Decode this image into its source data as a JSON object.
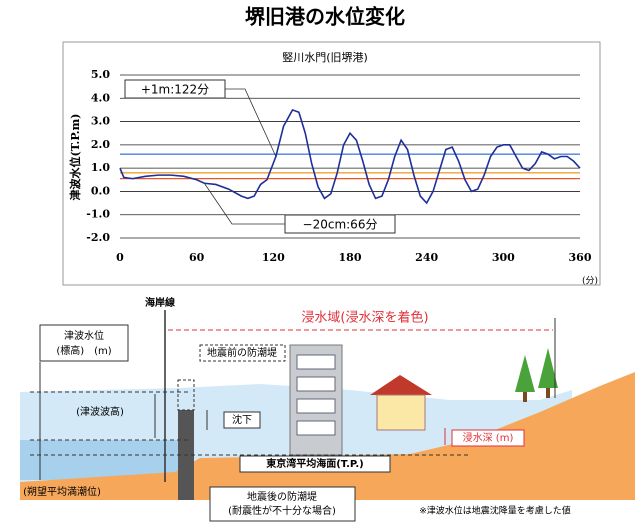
{
  "chart_data": {
    "type": "line",
    "title": "堺旧港の水位変化",
    "subtitle": "竪川水門(旧堺港)",
    "y_label": "津波水位(T.P.m)",
    "x_label": "(分)",
    "x": [
      0,
      3,
      10,
      20,
      30,
      40,
      50,
      60,
      66,
      75,
      85,
      95,
      100,
      105,
      110,
      115,
      122,
      128,
      135,
      140,
      145,
      150,
      155,
      160,
      165,
      170,
      175,
      180,
      185,
      190,
      195,
      200,
      205,
      210,
      215,
      220,
      225,
      230,
      235,
      240,
      245,
      250,
      255,
      260,
      265,
      270,
      275,
      280,
      285,
      290,
      295,
      300,
      305,
      310,
      315,
      320,
      325,
      330,
      335,
      340,
      345,
      350,
      355,
      360
    ],
    "values": [
      1.0,
      0.6,
      0.55,
      0.65,
      0.7,
      0.7,
      0.65,
      0.5,
      0.35,
      0.3,
      0.1,
      -0.2,
      -0.3,
      -0.2,
      0.3,
      0.5,
      1.5,
      2.8,
      3.5,
      3.4,
      2.5,
      1.2,
      0.2,
      -0.3,
      -0.1,
      0.8,
      2.0,
      2.5,
      2.2,
      1.3,
      0.3,
      -0.3,
      -0.2,
      0.5,
      1.5,
      2.2,
      1.8,
      0.7,
      -0.2,
      -0.5,
      0.0,
      0.9,
      1.8,
      1.9,
      1.3,
      0.5,
      0.0,
      0.1,
      0.7,
      1.5,
      1.9,
      2.0,
      2.0,
      1.5,
      1.0,
      0.9,
      1.2,
      1.7,
      1.6,
      1.4,
      1.5,
      1.5,
      1.3,
      1.0
    ],
    "color": "#1f2f9a",
    "xlim": [
      0,
      360
    ],
    "xticks": [
      0,
      60,
      120,
      180,
      240,
      300,
      360
    ],
    "ylim": [
      -2,
      5
    ],
    "yticks": [
      {
        "value": -2,
        "label": "-2.0"
      },
      {
        "value": -1,
        "label": "-1.0"
      },
      {
        "value": 0,
        "label": "0.0"
      },
      {
        "value": 1,
        "label": "1.0"
      },
      {
        "value": 2,
        "label": "2.0"
      },
      {
        "value": 3,
        "label": "3.0"
      },
      {
        "value": 4,
        "label": "4.0"
      },
      {
        "value": 5,
        "label": "5.0"
      }
    ],
    "grid": true,
    "reference_lines": [
      {
        "value": 1.6,
        "color": "#4a7fe0"
      },
      {
        "value": 0.8,
        "color": "#f0a030"
      },
      {
        "value": 0.55,
        "color": "#e4572a"
      }
    ],
    "annotations": [
      {
        "text": "+1m:122分",
        "x": 122
      },
      {
        "text": "−20cm:66分",
        "x": 66
      }
    ]
  },
  "diagram": {
    "coastline": "海岸線",
    "inundation_area": "浸水域(浸水深を着色)",
    "tsunami_level": [
      "津波水位",
      "(標高)　(m)"
    ],
    "seawall_before": "地震前の防潮堤",
    "wave_height": "(津波波高)",
    "subsidence": "沈下",
    "inundation_depth": "浸水深 (m)",
    "tp": "東京湾平均海面(T.P.)",
    "high_tide": "(朔望平均満潮位)",
    "seawall_after": [
      "地震後の防潮堤",
      "(耐震性が不十分な場合)"
    ],
    "note": "※津波水位は地震沈降量を考慮した値"
  }
}
